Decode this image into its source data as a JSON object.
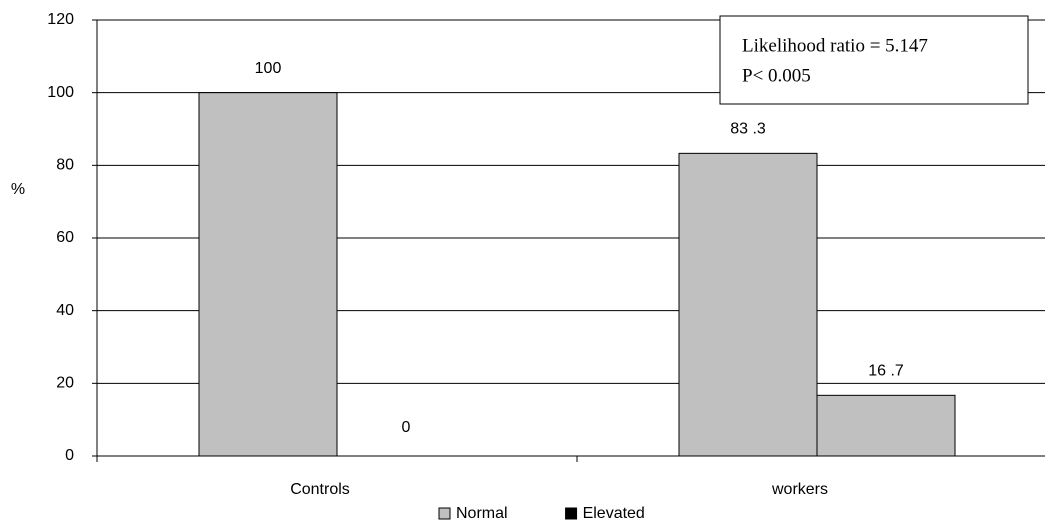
{
  "chart_data": {
    "type": "bar",
    "ylabel": "%",
    "categories": [
      "Controls",
      "workers"
    ],
    "series": [
      {
        "name": "Normal",
        "color": "#c0c0c0",
        "bar_color": "#c0c0c0",
        "values": [
          100,
          83.3
        ],
        "value_labels": [
          "100",
          "83 .3"
        ]
      },
      {
        "name": "Elevated",
        "color": "#000000",
        "bar_color": "#c0c0c0",
        "values": [
          0,
          16.7
        ],
        "value_labels": [
          "0",
          "16 .7"
        ]
      }
    ],
    "ylim": [
      0,
      120
    ],
    "yticks": [
      0,
      20,
      40,
      60,
      80,
      100,
      120
    ],
    "grid": true,
    "annotations": [
      "Likelihood ratio = 5.147",
      "P< 0.005"
    ],
    "legend": "bottom"
  }
}
